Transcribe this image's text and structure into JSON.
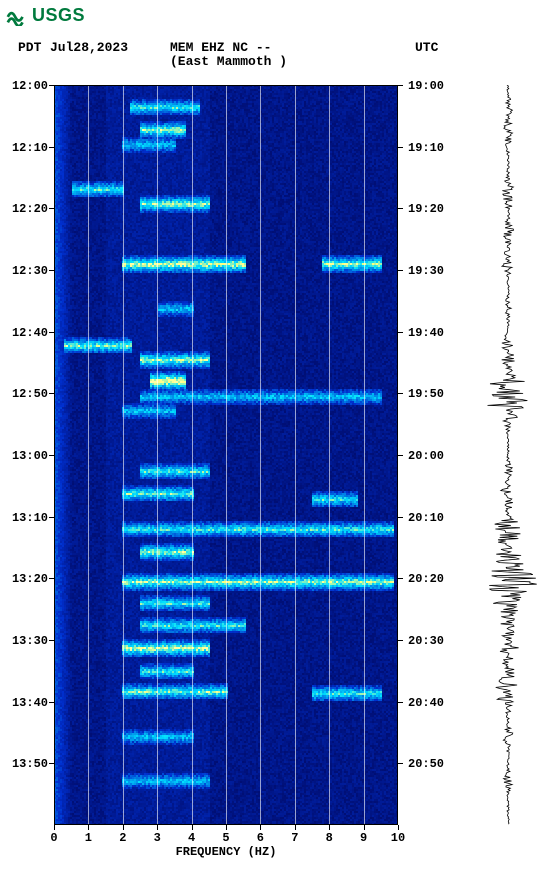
{
  "logo": {
    "text": "USGS",
    "color": "#007a3d"
  },
  "header": {
    "tz_left": "PDT",
    "date": "Jul28,2023",
    "station": "MEM EHZ NC --",
    "location": "(East Mammoth )",
    "tz_right": "UTC"
  },
  "spectrogram": {
    "type": "spectrogram",
    "xlabel": "FREQUENCY (HZ)",
    "xlim": [
      0,
      10
    ],
    "xticks": [
      0,
      1,
      2,
      3,
      4,
      5,
      6,
      7,
      8,
      9,
      10
    ],
    "y_left_ticks": [
      "12:00",
      "12:10",
      "12:20",
      "12:30",
      "12:40",
      "12:50",
      "13:00",
      "13:10",
      "13:20",
      "13:30",
      "13:40",
      "13:50"
    ],
    "y_right_ticks": [
      "19:00",
      "19:10",
      "19:20",
      "19:30",
      "19:40",
      "19:50",
      "20:00",
      "20:10",
      "20:20",
      "20:30",
      "20:40",
      "20:50"
    ],
    "tick_fontsize": 12,
    "label_fontsize": 12,
    "background_color": "#00006b",
    "grid_color": "#ffffff",
    "grid_alpha": 0.6,
    "colormap": {
      "low": "#00004d",
      "mid": "#0030d0",
      "high": "#00e0ff",
      "peak": "#ffff80"
    },
    "events": [
      {
        "t": 0.03,
        "f0": 2.2,
        "f1": 4.2,
        "intensity": 0.6
      },
      {
        "t": 0.06,
        "f0": 2.5,
        "f1": 3.8,
        "intensity": 0.7
      },
      {
        "t": 0.08,
        "f0": 2.0,
        "f1": 3.5,
        "intensity": 0.5
      },
      {
        "t": 0.14,
        "f0": 0.5,
        "f1": 2.0,
        "intensity": 0.6
      },
      {
        "t": 0.16,
        "f0": 2.5,
        "f1": 4.5,
        "intensity": 0.7
      },
      {
        "t": 0.24,
        "f0": 2.0,
        "f1": 5.5,
        "intensity": 0.75
      },
      {
        "t": 0.24,
        "f0": 7.8,
        "f1": 9.5,
        "intensity": 0.7
      },
      {
        "t": 0.3,
        "f0": 3.0,
        "f1": 4.0,
        "intensity": 0.5
      },
      {
        "t": 0.35,
        "f0": 0.3,
        "f1": 2.2,
        "intensity": 0.65
      },
      {
        "t": 0.37,
        "f0": 2.5,
        "f1": 4.5,
        "intensity": 0.7
      },
      {
        "t": 0.4,
        "f0": 2.8,
        "f1": 3.8,
        "intensity": 0.85
      },
      {
        "t": 0.42,
        "f0": 2.5,
        "f1": 9.5,
        "intensity": 0.5
      },
      {
        "t": 0.44,
        "f0": 2.0,
        "f1": 3.5,
        "intensity": 0.5
      },
      {
        "t": 0.52,
        "f0": 2.5,
        "f1": 4.5,
        "intensity": 0.6
      },
      {
        "t": 0.55,
        "f0": 2.0,
        "f1": 4.0,
        "intensity": 0.65
      },
      {
        "t": 0.56,
        "f0": 7.5,
        "f1": 8.8,
        "intensity": 0.6
      },
      {
        "t": 0.6,
        "f0": 2.0,
        "f1": 9.8,
        "intensity": 0.6
      },
      {
        "t": 0.63,
        "f0": 2.5,
        "f1": 4.0,
        "intensity": 0.7
      },
      {
        "t": 0.67,
        "f0": 2.0,
        "f1": 9.8,
        "intensity": 0.7
      },
      {
        "t": 0.7,
        "f0": 2.5,
        "f1": 4.5,
        "intensity": 0.6
      },
      {
        "t": 0.73,
        "f0": 2.5,
        "f1": 5.5,
        "intensity": 0.6
      },
      {
        "t": 0.76,
        "f0": 2.0,
        "f1": 4.5,
        "intensity": 0.75
      },
      {
        "t": 0.79,
        "f0": 2.5,
        "f1": 4.0,
        "intensity": 0.6
      },
      {
        "t": 0.82,
        "f0": 2.0,
        "f1": 5.0,
        "intensity": 0.65
      },
      {
        "t": 0.82,
        "f0": 7.5,
        "f1": 9.5,
        "intensity": 0.6
      },
      {
        "t": 0.88,
        "f0": 2.0,
        "f1": 4.0,
        "intensity": 0.5
      },
      {
        "t": 0.94,
        "f0": 2.0,
        "f1": 4.5,
        "intensity": 0.5
      }
    ],
    "low_freq_band": {
      "f0": 0.0,
      "f1": 0.4,
      "intensity": 0.3
    }
  },
  "seismogram": {
    "color": "#000000",
    "baseline_x": 30,
    "max_amp": 28,
    "bursts": [
      {
        "t": 0.03,
        "amp": 4
      },
      {
        "t": 0.06,
        "amp": 4
      },
      {
        "t": 0.08,
        "amp": 3
      },
      {
        "t": 0.14,
        "amp": 5
      },
      {
        "t": 0.16,
        "amp": 4
      },
      {
        "t": 0.2,
        "amp": 6
      },
      {
        "t": 0.24,
        "amp": 7
      },
      {
        "t": 0.3,
        "amp": 3
      },
      {
        "t": 0.35,
        "amp": 5
      },
      {
        "t": 0.37,
        "amp": 5
      },
      {
        "t": 0.4,
        "amp": 8
      },
      {
        "t": 0.42,
        "amp": 22
      },
      {
        "t": 0.44,
        "amp": 6
      },
      {
        "t": 0.52,
        "amp": 4
      },
      {
        "t": 0.55,
        "amp": 5
      },
      {
        "t": 0.56,
        "amp": 4
      },
      {
        "t": 0.6,
        "amp": 14
      },
      {
        "t": 0.63,
        "amp": 6
      },
      {
        "t": 0.67,
        "amp": 28
      },
      {
        "t": 0.7,
        "amp": 8
      },
      {
        "t": 0.73,
        "amp": 6
      },
      {
        "t": 0.76,
        "amp": 10
      },
      {
        "t": 0.79,
        "amp": 5
      },
      {
        "t": 0.82,
        "amp": 14
      },
      {
        "t": 0.88,
        "amp": 5
      },
      {
        "t": 0.94,
        "amp": 4
      }
    ]
  }
}
